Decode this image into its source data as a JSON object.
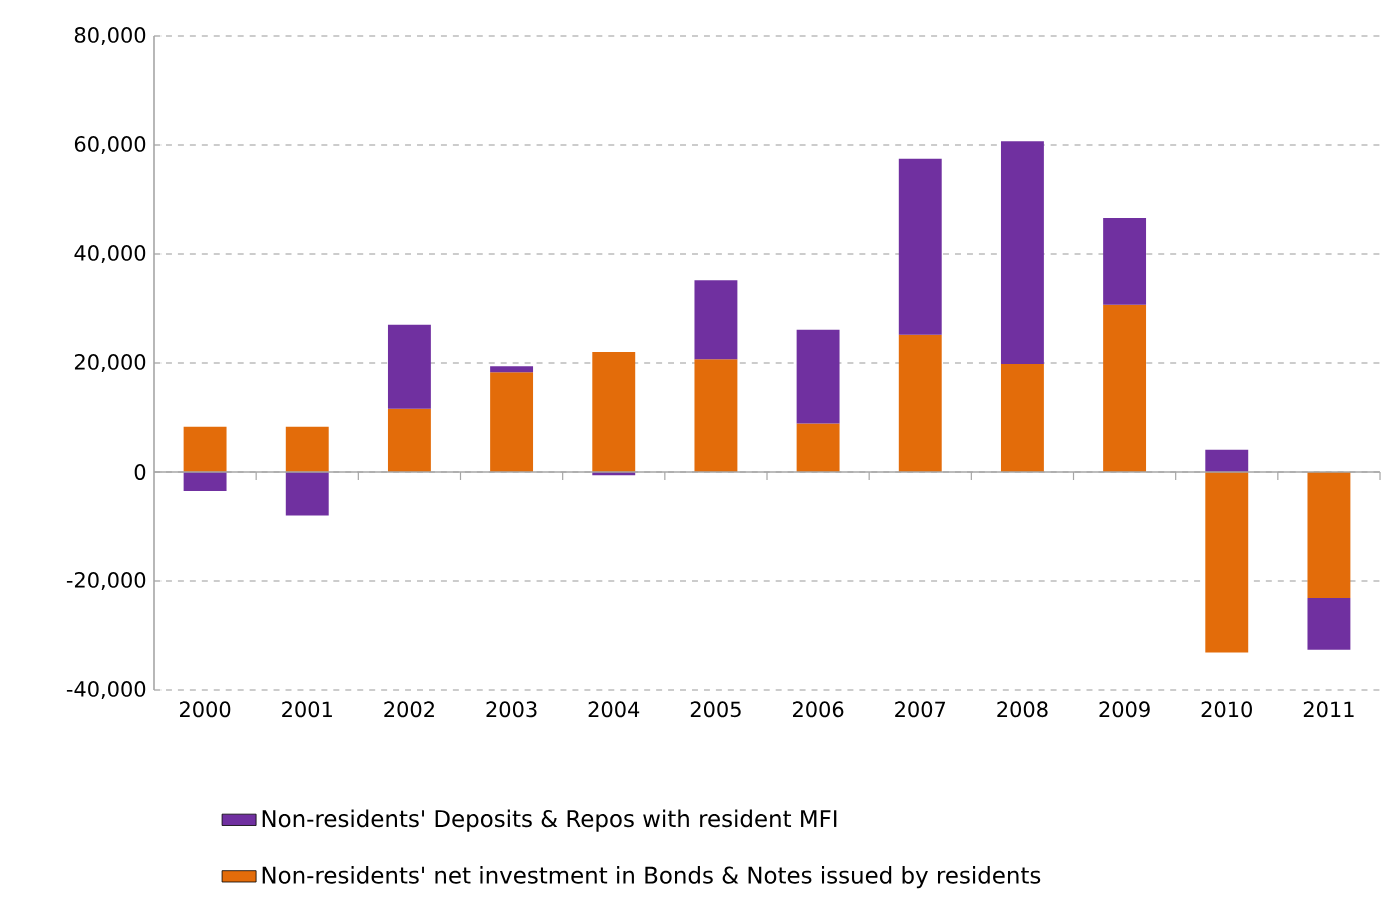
{
  "chart_data": {
    "type": "bar",
    "stacked": true,
    "categories": [
      "2000",
      "2001",
      "2002",
      "2003",
      "2004",
      "2005",
      "2006",
      "2007",
      "2008",
      "2009",
      "2010",
      "2011"
    ],
    "series": [
      {
        "name": "Non-residents' net investment in Bonds & Notes issued by residents",
        "color": "#e36c0a",
        "values": [
          8300,
          8300,
          11600,
          18300,
          22000,
          20700,
          8900,
          25200,
          19800,
          30700,
          -33100,
          -23100
        ]
      },
      {
        "name": "Non-residents' Deposits & Repos with resident MFI",
        "color": "#7030a0",
        "values": [
          -3500,
          -8000,
          15400,
          1100,
          -600,
          14500,
          17200,
          32300,
          40900,
          15900,
          4100,
          -9500
        ]
      }
    ],
    "ylim": [
      -40000,
      80000
    ],
    "yticks": [
      {
        "value": -40000,
        "label": "-40,000"
      },
      {
        "value": -20000,
        "label": "-20,000"
      },
      0,
      {
        "value": 20000,
        "label": "20,000"
      },
      {
        "value": 40000,
        "label": "40,000"
      },
      {
        "value": 60000,
        "label": "60,000"
      },
      {
        "value": 80000,
        "label": "80,000"
      }
    ],
    "grid": "y",
    "legend": "bottom"
  }
}
